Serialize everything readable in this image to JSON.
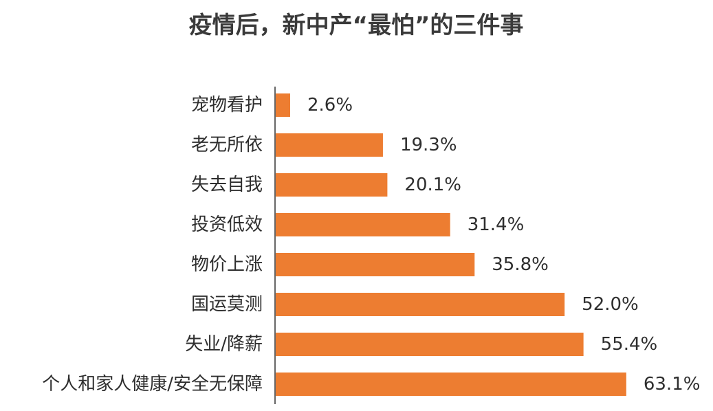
{
  "chart_data": {
    "type": "bar",
    "orientation": "horizontal",
    "title": "疫情后，新中产“最怕”的三件事",
    "categories": [
      "宠物看护",
      "老无所依",
      "失去自我",
      "投资低效",
      "物价上涨",
      "国运莫测",
      "失业/降薪",
      "个人和家人健康/安全无保障"
    ],
    "values": [
      2.6,
      19.3,
      20.1,
      31.4,
      35.8,
      52.0,
      55.4,
      63.1
    ],
    "value_labels": [
      "2.6%",
      "19.3%",
      "20.1%",
      "31.4%",
      "35.8%",
      "52.0%",
      "55.4%",
      "63.1%"
    ],
    "unit": "%",
    "xlim": [
      0,
      100
    ],
    "grid": false,
    "legend": "none",
    "bar_color": "#ED7D31"
  }
}
